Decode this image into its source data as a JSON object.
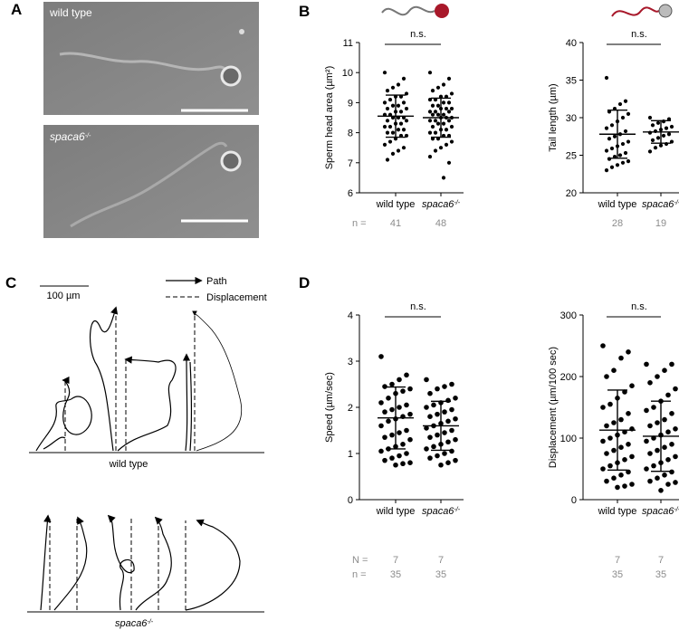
{
  "panel_labels": [
    "A",
    "B",
    "C",
    "D"
  ],
  "images": [
    "wild type",
    {
      "text": "spaca6",
      "sup": "-/-"
    }
  ],
  "trajectories": {
    "scale": "100 µm",
    "legend": [
      "Path",
      "Displacement"
    ],
    "groups": [
      "wild type",
      {
        "text": "spaca6",
        "sup": "-/-"
      }
    ]
  },
  "chart_data": [
    {
      "type": "dotplot",
      "ylabel": "Sperm head area (µm²)",
      "annotation": "n.s.",
      "categories": [
        "wild type",
        {
          "text": "spaca6",
          "sup": "-/-"
        }
      ],
      "ylim": [
        6,
        11
      ],
      "yticks": [
        6,
        7,
        8,
        9,
        10,
        11
      ],
      "groups": [
        {
          "mean": 8.55,
          "sd": 0.7,
          "values": [
            10.0,
            9.8,
            9.6,
            9.5,
            9.4,
            9.3,
            9.2,
            9.2,
            9.1,
            9.0,
            9.0,
            8.9,
            8.9,
            8.8,
            8.8,
            8.7,
            8.7,
            8.6,
            8.6,
            8.5,
            8.5,
            8.5,
            8.4,
            8.4,
            8.3,
            8.3,
            8.2,
            8.2,
            8.1,
            8.1,
            8.0,
            8.0,
            7.9,
            7.9,
            7.8,
            7.7,
            7.6,
            7.5,
            7.4,
            7.3,
            7.1
          ]
        },
        {
          "mean": 8.5,
          "sd": 0.65,
          "values": [
            10.0,
            9.8,
            9.6,
            9.5,
            9.4,
            9.3,
            9.2,
            9.2,
            9.1,
            9.1,
            9.0,
            9.0,
            8.9,
            8.9,
            8.8,
            8.8,
            8.8,
            8.7,
            8.7,
            8.7,
            8.6,
            8.6,
            8.6,
            8.5,
            8.5,
            8.5,
            8.4,
            8.4,
            8.4,
            8.3,
            8.3,
            8.2,
            8.2,
            8.1,
            8.1,
            8.0,
            8.0,
            7.9,
            7.9,
            7.8,
            7.8,
            7.7,
            7.6,
            7.5,
            7.4,
            7.2,
            7.0,
            6.5
          ]
        }
      ],
      "counts": [
        {
          "label": "n =",
          "values": [
            41,
            48
          ]
        }
      ]
    },
    {
      "type": "dotplot",
      "ylabel": "Tail length (µm)",
      "annotation": "n.s.",
      "categories": [
        "wild type",
        {
          "text": "spaca6",
          "sup": "-/-"
        }
      ],
      "ylim": [
        20,
        40
      ],
      "yticks": [
        20,
        25,
        30,
        35,
        40
      ],
      "groups": [
        {
          "mean": 27.8,
          "sd": 3.2,
          "values": [
            35.3,
            32.2,
            31.8,
            31.2,
            30.8,
            30.5,
            30.0,
            29.5,
            29.0,
            28.6,
            28.2,
            27.8,
            27.5,
            27.2,
            26.8,
            26.5,
            26.2,
            25.9,
            25.6,
            25.3,
            25.0,
            24.8,
            24.5,
            24.2,
            24.0,
            23.7,
            23.4,
            23.0
          ]
        },
        {
          "mean": 28.1,
          "sd": 1.5,
          "values": [
            30.0,
            29.8,
            29.5,
            29.3,
            29.0,
            28.8,
            28.6,
            28.4,
            28.2,
            28.0,
            27.8,
            27.6,
            27.3,
            27.0,
            26.8,
            26.5,
            26.3,
            26.0,
            25.5
          ]
        }
      ],
      "counts": [
        {
          "values": [
            28,
            19
          ]
        }
      ]
    },
    {
      "type": "dotplot",
      "ylabel": "Speed (µm/sec)",
      "annotation": "n.s.",
      "categories": [
        "wild type",
        {
          "text": "spaca6",
          "sup": "-/-"
        }
      ],
      "ylim": [
        0,
        4
      ],
      "yticks": [
        0,
        1,
        2,
        3,
        4
      ],
      "groups": [
        {
          "mean": 1.77,
          "sd": 0.67,
          "values": [
            3.1,
            2.7,
            2.6,
            2.5,
            2.45,
            2.4,
            2.35,
            2.3,
            2.2,
            2.1,
            2.05,
            2.0,
            1.95,
            1.9,
            1.85,
            1.8,
            1.75,
            1.7,
            1.6,
            1.5,
            1.45,
            1.4,
            1.35,
            1.3,
            1.2,
            1.15,
            1.1,
            1.05,
            1.0,
            0.95,
            0.9,
            0.85,
            0.8,
            0.78,
            0.75
          ]
        },
        {
          "mean": 1.6,
          "sd": 0.53,
          "values": [
            2.6,
            2.5,
            2.45,
            2.4,
            2.3,
            2.2,
            2.15,
            2.1,
            2.05,
            2.0,
            1.95,
            1.9,
            1.85,
            1.8,
            1.75,
            1.7,
            1.65,
            1.6,
            1.55,
            1.5,
            1.45,
            1.4,
            1.35,
            1.3,
            1.25,
            1.2,
            1.15,
            1.1,
            1.05,
            1.0,
            0.95,
            0.9,
            0.85,
            0.8,
            0.75
          ]
        }
      ],
      "counts": [
        {
          "label": "N =",
          "values": [
            7,
            7
          ]
        },
        {
          "label": "n =",
          "values": [
            35,
            35
          ]
        }
      ]
    },
    {
      "type": "dotplot",
      "ylabel": "Displacement (µm/100 sec)",
      "annotation": "n.s.",
      "categories": [
        "wild type",
        {
          "text": "spaca6",
          "sup": "-/-"
        }
      ],
      "ylim": [
        0,
        300
      ],
      "yticks": [
        0,
        100,
        200,
        300
      ],
      "groups": [
        {
          "mean": 113,
          "sd": 65,
          "values": [
            250,
            240,
            230,
            210,
            200,
            185,
            175,
            165,
            155,
            150,
            140,
            130,
            125,
            120,
            115,
            110,
            105,
            100,
            95,
            90,
            85,
            80,
            75,
            70,
            65,
            60,
            55,
            50,
            45,
            40,
            35,
            30,
            25,
            22,
            20
          ]
        },
        {
          "mean": 103,
          "sd": 57,
          "values": [
            220,
            220,
            210,
            200,
            190,
            180,
            170,
            160,
            150,
            145,
            140,
            130,
            125,
            120,
            115,
            110,
            105,
            100,
            95,
            90,
            85,
            80,
            75,
            70,
            65,
            60,
            55,
            50,
            45,
            40,
            35,
            30,
            28,
            25,
            15
          ]
        }
      ],
      "counts": [
        {
          "values": [
            7,
            7
          ]
        },
        {
          "values": [
            35,
            35
          ]
        }
      ]
    }
  ]
}
